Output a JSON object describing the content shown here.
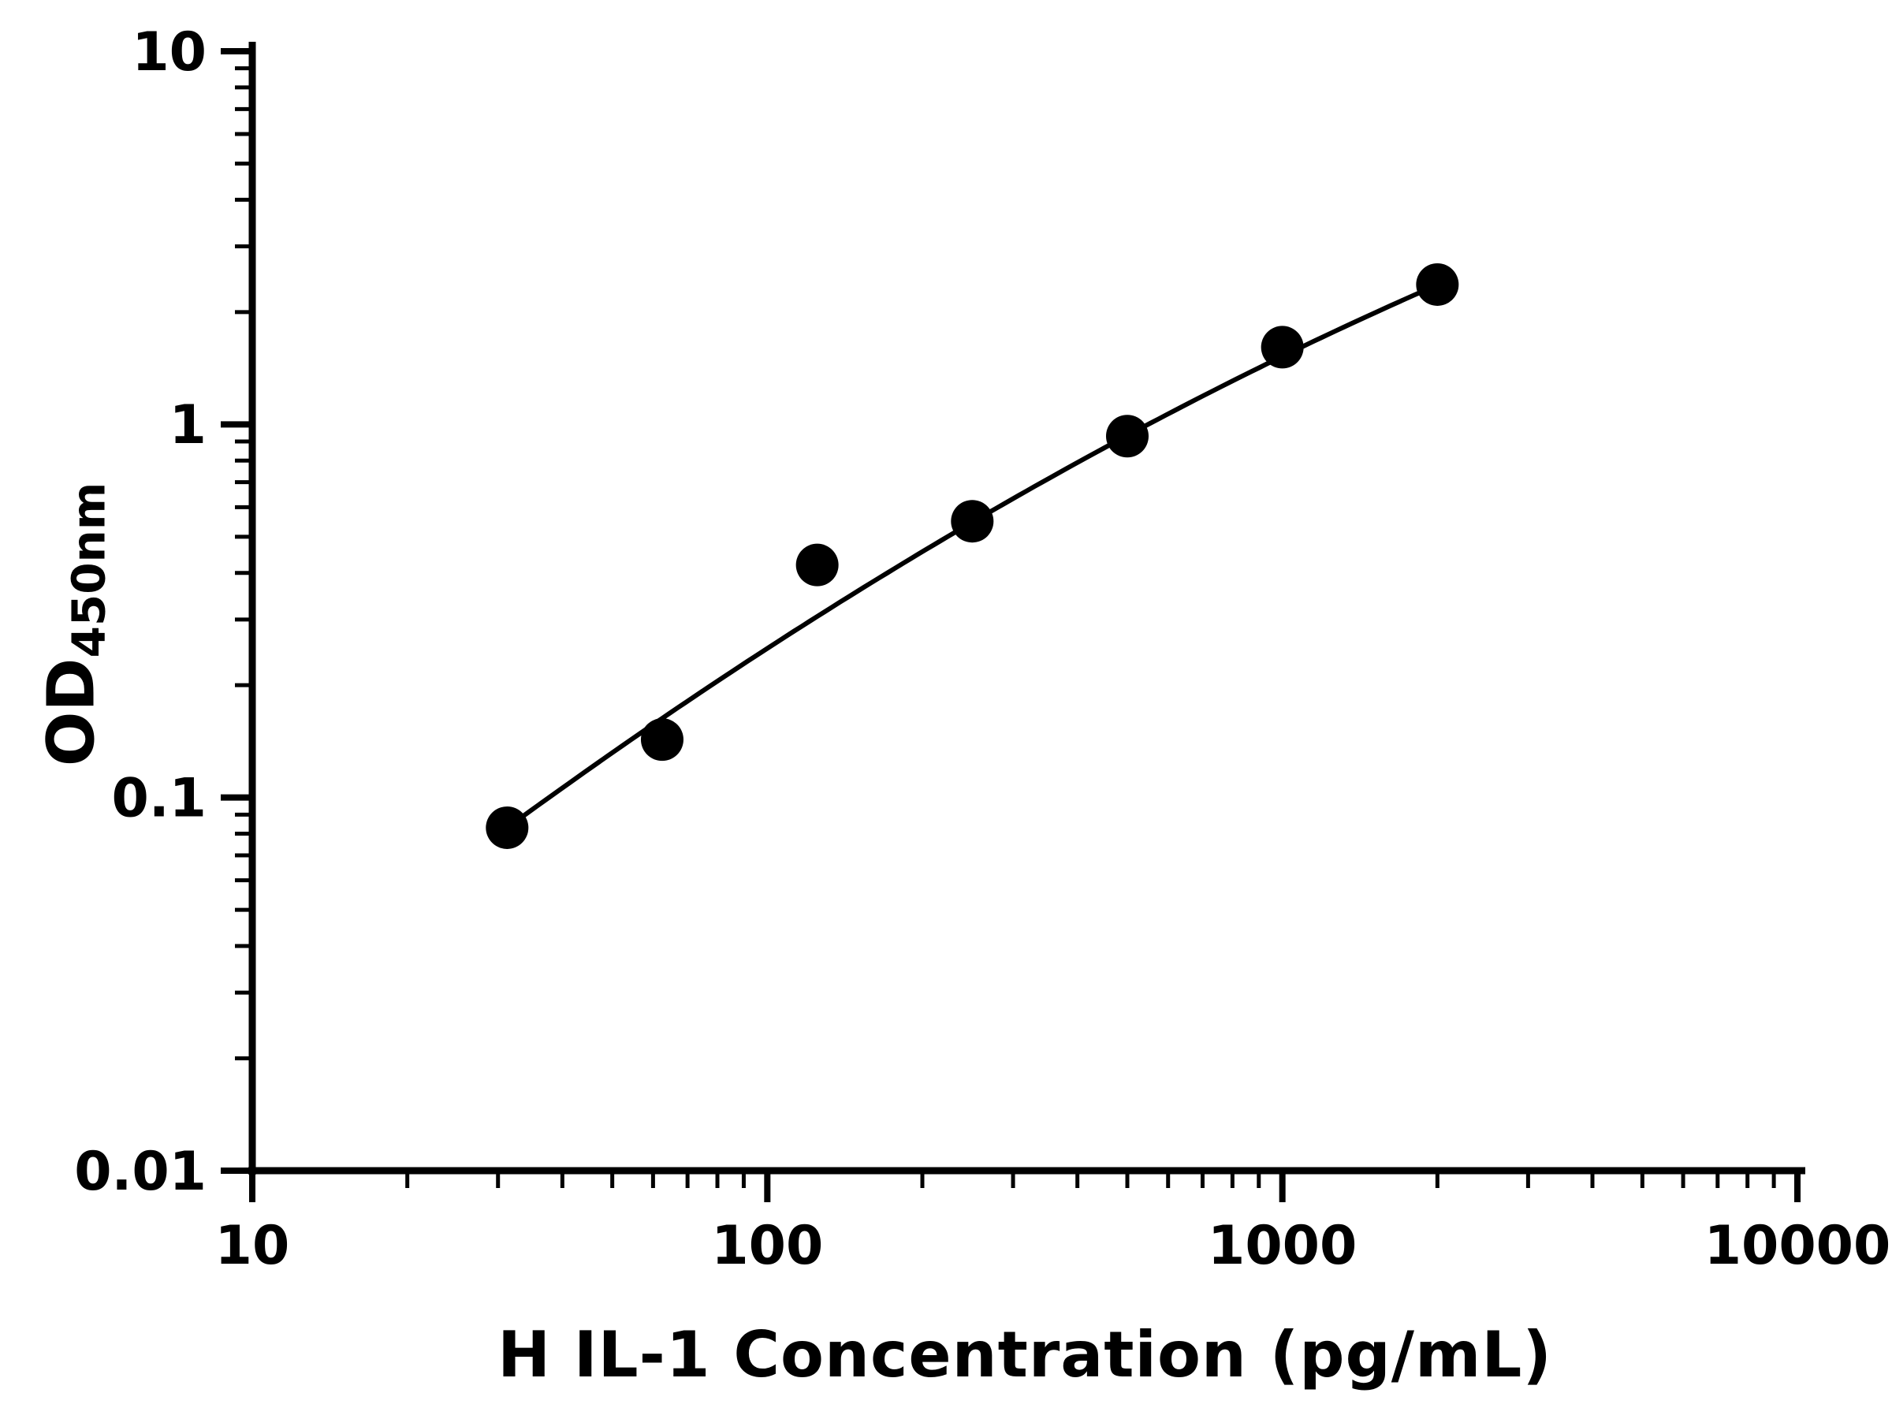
{
  "chart_data": {
    "type": "scatter",
    "title": "",
    "xlabel": "H IL-1 Concentration (pg/mL)",
    "ylabel_main": "OD",
    "ylabel_sub": "450nm",
    "x_scale": "log",
    "y_scale": "log",
    "xlim": [
      10,
      10000
    ],
    "ylim": [
      0.01,
      10
    ],
    "x_ticks": [
      10,
      100,
      1000,
      10000
    ],
    "x_tick_labels": [
      "10",
      "100",
      "1000",
      "10000"
    ],
    "y_ticks": [
      0.01,
      0.1,
      1,
      10
    ],
    "y_tick_labels": [
      "0.01",
      "0.1",
      "1",
      "10"
    ],
    "grid": "off",
    "legend": "none",
    "points": {
      "x": [
        31.25,
        62.5,
        125,
        250,
        500,
        1000,
        2000
      ],
      "y": [
        0.083,
        0.143,
        0.42,
        0.55,
        0.93,
        1.61,
        2.37
      ]
    },
    "fit_curve": {
      "type": "quadratic-loglog",
      "a": -2.839,
      "b": 1.3437,
      "c": -0.1122,
      "x_range": [
        31.25,
        2000
      ]
    },
    "marker_color": "#000000",
    "line_color": "#000000",
    "axis_color": "#000000",
    "background": "#ffffff"
  }
}
